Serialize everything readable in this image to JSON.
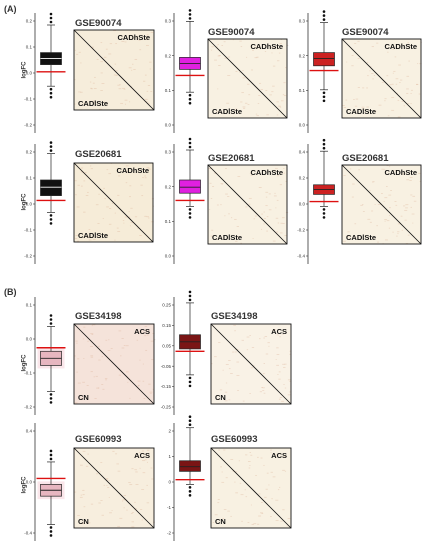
{
  "sections": [
    {
      "label": "(A)",
      "panels": [
        {
          "title": "GSE90074",
          "ylabel": "logFC",
          "ticks": [
            "0.2",
            "0.1",
            "0.0",
            "-0.1",
            "-0.2"
          ],
          "box_color": "#111111",
          "top_label": "CADhSte",
          "bottom_label": "CADlSte"
        },
        {
          "title": "GSE90074",
          "ylabel": "",
          "ticks": [
            "0.3",
            "0.2",
            "0.1",
            "0.0"
          ],
          "box_color": "#e020e0",
          "top_label": "CADhSte",
          "bottom_label": "CADlSte"
        },
        {
          "title": "GSE90074",
          "ylabel": "",
          "ticks": [
            "0.3",
            "0.2",
            "0.1",
            "0.0"
          ],
          "box_color": "#cc2222",
          "top_label": "CADhSte",
          "bottom_label": "CADlSte"
        },
        {
          "title": "GSE20681",
          "ylabel": "logFC",
          "ticks": [
            "0.2",
            "0.1",
            "0.0",
            "-0.1",
            "-0.2"
          ],
          "box_color": "#111111",
          "top_label": "CADhSte",
          "bottom_label": "CADlSte"
        },
        {
          "title": "GSE20681",
          "ylabel": "",
          "ticks": [
            "0.3",
            "0.2",
            "0.1",
            "0.0"
          ],
          "box_color": "#e020e0",
          "top_label": "CADhSte",
          "bottom_label": "CADlSte"
        },
        {
          "title": "GSE20681",
          "ylabel": "",
          "ticks": [
            "0.4",
            "0.2",
            "0.0",
            "-0.2",
            "-0.4"
          ],
          "box_color": "#cc2222",
          "top_label": "CADhSte",
          "bottom_label": "CADlSte"
        }
      ]
    },
    {
      "label": "(B)",
      "panels": [
        {
          "title": "GSE34198",
          "ylabel": "logFC",
          "ticks": [
            "0.1",
            "0.0",
            "-0.1",
            "-0.2"
          ],
          "box_color": "#e7b6c0",
          "top_label": "ACS",
          "bottom_label": "CN"
        },
        {
          "title": "GSE34198",
          "ylabel": "",
          "ticks": [
            "0.25",
            "0.15",
            "0.05",
            "-0.05",
            "-0.15",
            "-0.25"
          ],
          "box_color": "#7a1515",
          "top_label": "ACS",
          "bottom_label": "CN"
        },
        {
          "title": "GSE60993",
          "ylabel": "logFC",
          "ticks": [
            "0.4",
            "0.0",
            "-0.4"
          ],
          "box_color": "#e7b6c0",
          "top_label": "ACS",
          "bottom_label": "CN"
        },
        {
          "title": "GSE60993",
          "ylabel": "",
          "ticks": [
            "2",
            "1",
            "0",
            "-1",
            "-2"
          ],
          "box_color": "#7a1515",
          "top_label": "ACS",
          "bottom_label": "CN"
        }
      ]
    }
  ]
}
